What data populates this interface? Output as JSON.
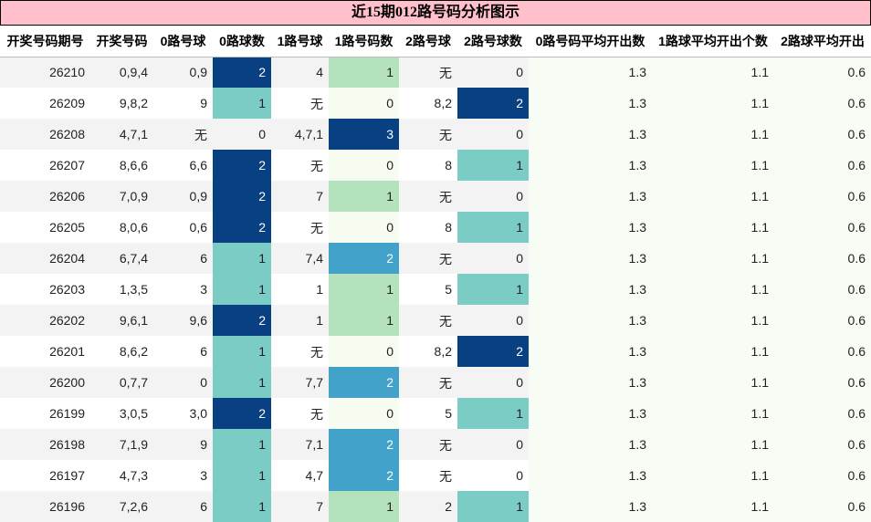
{
  "chart_data": {
    "type": "table",
    "title": "近15期012路号码分析图示",
    "columns": [
      "开奖号码期号",
      "开奖号码",
      "0路号球",
      "0路球数",
      "1路号球",
      "1路号码数",
      "2路号球",
      "2路号球数",
      "0路号码平均开出数",
      "1路球平均开出个数",
      "2路球平均开出"
    ],
    "rows": [
      [
        "26210",
        "0,9,4",
        "0,9",
        2,
        "4",
        1,
        "无",
        0,
        "1.3",
        "1.1",
        "0.6"
      ],
      [
        "26209",
        "9,8,2",
        "9",
        1,
        "无",
        0,
        "8,2",
        2,
        "1.3",
        "1.1",
        "0.6"
      ],
      [
        "26208",
        "4,7,1",
        "无",
        0,
        "4,7,1",
        3,
        "无",
        0,
        "1.3",
        "1.1",
        "0.6"
      ],
      [
        "26207",
        "8,6,6",
        "6,6",
        2,
        "无",
        0,
        "8",
        1,
        "1.3",
        "1.1",
        "0.6"
      ],
      [
        "26206",
        "7,0,9",
        "0,9",
        2,
        "7",
        1,
        "无",
        0,
        "1.3",
        "1.1",
        "0.6"
      ],
      [
        "26205",
        "8,0,6",
        "0,6",
        2,
        "无",
        0,
        "8",
        1,
        "1.3",
        "1.1",
        "0.6"
      ],
      [
        "26204",
        "6,7,4",
        "6",
        1,
        "7,4",
        2,
        "无",
        0,
        "1.3",
        "1.1",
        "0.6"
      ],
      [
        "26203",
        "1,3,5",
        "3",
        1,
        "1",
        1,
        "5",
        1,
        "1.3",
        "1.1",
        "0.6"
      ],
      [
        "26202",
        "9,6,1",
        "9,6",
        2,
        "1",
        1,
        "无",
        0,
        "1.3",
        "1.1",
        "0.6"
      ],
      [
        "26201",
        "8,6,2",
        "6",
        1,
        "无",
        0,
        "8,2",
        2,
        "1.3",
        "1.1",
        "0.6"
      ],
      [
        "26200",
        "0,7,7",
        "0",
        1,
        "7,7",
        2,
        "无",
        0,
        "1.3",
        "1.1",
        "0.6"
      ],
      [
        "26199",
        "3,0,5",
        "3,0",
        2,
        "无",
        0,
        "5",
        1,
        "1.3",
        "1.1",
        "0.6"
      ],
      [
        "26198",
        "7,1,9",
        "9",
        1,
        "7,1",
        2,
        "无",
        0,
        "1.3",
        "1.1",
        "0.6"
      ],
      [
        "26197",
        "4,7,3",
        "3",
        1,
        "4,7",
        2,
        "无",
        0,
        "1.3",
        "1.1",
        "0.6"
      ],
      [
        "26196",
        "7,2,6",
        "6",
        1,
        "7",
        1,
        "2",
        1,
        "1.3",
        "1.1",
        "0.6"
      ]
    ],
    "heat_colors": {
      "0": "#f7fcf0",
      "1": "#b3e2bc",
      "2": "#43a2ca",
      "3": "#084081"
    },
    "heat_colors_0lu": {
      "1": "#7bccc4",
      "2": "#084081"
    },
    "heat_colors_2lu": {
      "1": "#7bccc4",
      "2": "#084081"
    }
  }
}
